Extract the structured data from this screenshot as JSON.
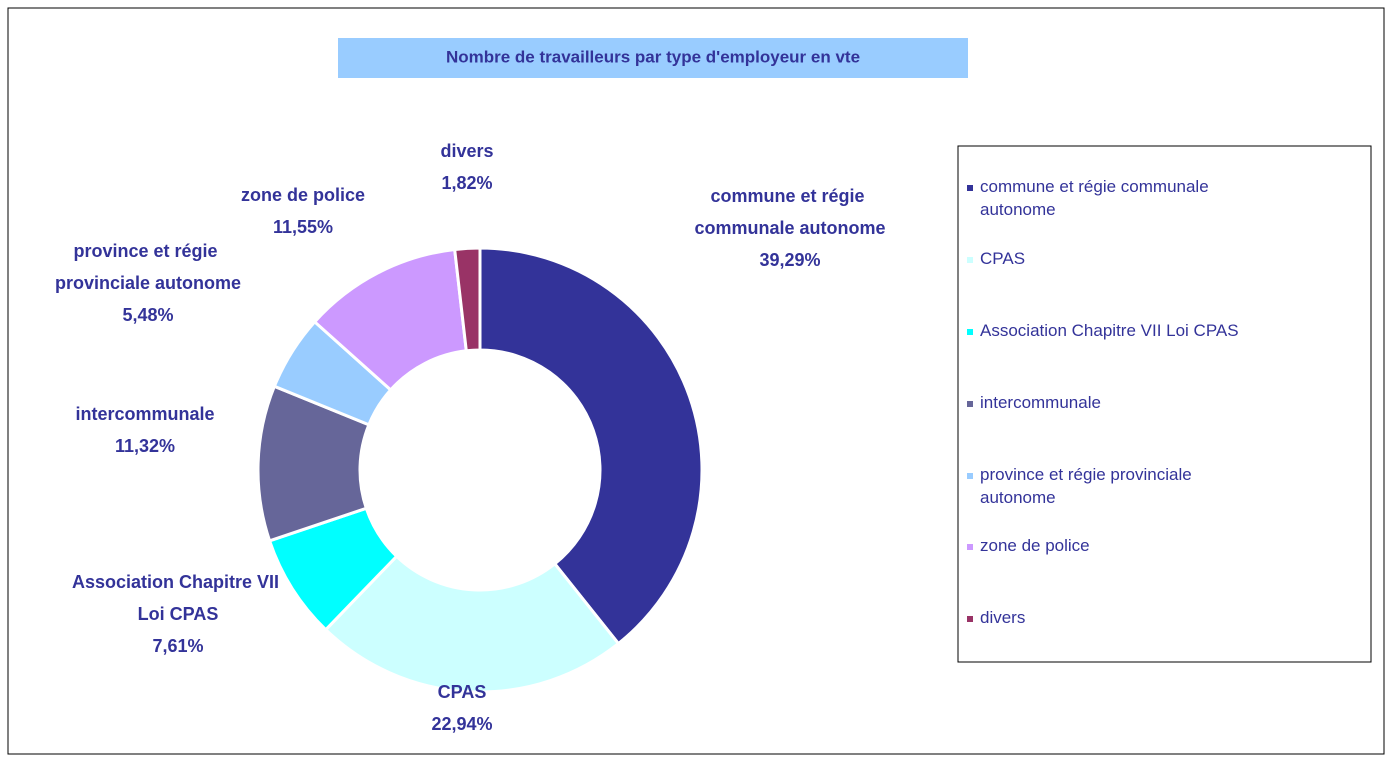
{
  "chart_data": {
    "type": "donut",
    "title": "Nombre de travailleurs par type d'employeur en vte",
    "categories": [
      "commune et régie communale autonome",
      "CPAS",
      "Association Chapitre VII  Loi CPAS",
      "intercommunale",
      "province et régie provinciale autonome",
      "zone de police",
      "divers"
    ],
    "values": [
      39.29,
      22.94,
      7.61,
      11.32,
      5.48,
      11.55,
      1.82
    ],
    "value_labels": [
      "39,29%",
      "22,94%",
      "7,61%",
      "11,32%",
      "5,48%",
      "11,55%",
      "1,82%"
    ],
    "colors": [
      "#333399",
      "#CCFFFF",
      "#00FFFF",
      "#666699",
      "#99CCFF",
      "#CC99FF",
      "#993366"
    ],
    "legend": "right"
  }
}
